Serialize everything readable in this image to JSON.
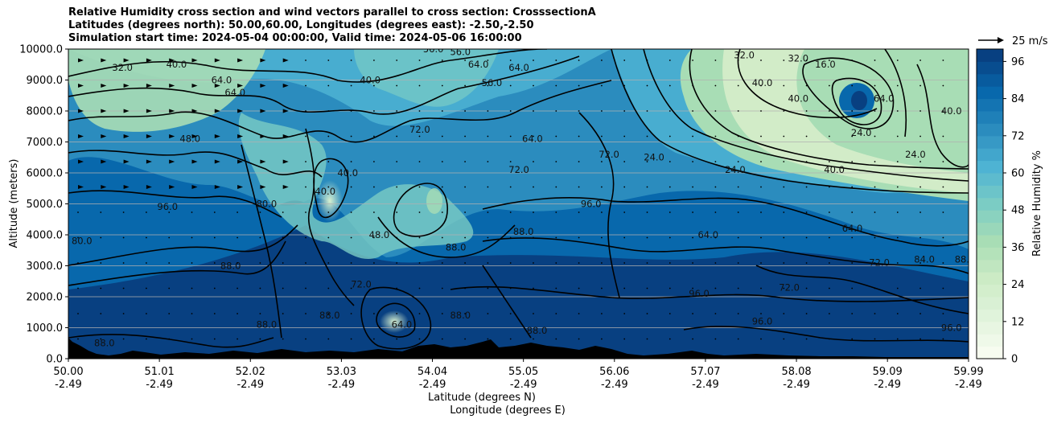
{
  "chart_data": {
    "type": "heatmap",
    "title": [
      "Relative Humidity cross section and wind vectors parallel to cross section: CrosssectionA",
      "Latitudes (degrees north): 50.00,60.00, Longitudes (degrees east): -2.50,-2.50",
      "Simulation start time: 2024-05-04 00:00:00, Valid time: 2024-05-06 16:00:00"
    ],
    "ylabel": "Altitude (meters)",
    "xlabel_lat": "Latitude (degrees N)",
    "xlabel_lon": "Longitude (degrees E)",
    "ylim": [
      0,
      10000
    ],
    "xlim": [
      50.0,
      59.99
    ],
    "y_ticks": [
      "0.0",
      "1000.0",
      "2000.0",
      "3000.0",
      "4000.0",
      "5000.0",
      "6000.0",
      "7000.0",
      "8000.0",
      "9000.0",
      "10000.0"
    ],
    "y_tick_values": [
      0,
      1000,
      2000,
      3000,
      4000,
      5000,
      6000,
      7000,
      8000,
      9000,
      10000
    ],
    "x_tick_values": [
      50.0,
      51.01,
      52.02,
      53.03,
      54.04,
      55.05,
      56.06,
      57.07,
      58.08,
      59.09,
      59.99
    ],
    "x_ticks_lat": [
      "50.00",
      "51.01",
      "52.02",
      "53.03",
      "54.04",
      "55.05",
      "56.06",
      "57.07",
      "58.08",
      "59.09",
      "59.99"
    ],
    "x_ticks_lon": [
      "-2.49",
      "-2.49",
      "-2.49",
      "-2.49",
      "-2.49",
      "-2.49",
      "-2.49",
      "-2.49",
      "-2.49",
      "-2.49",
      "-2.49"
    ],
    "colorbar": {
      "label": "Relative Humidity %",
      "range": [
        0,
        100
      ],
      "ticks": [
        "0",
        "12",
        "24",
        "36",
        "48",
        "60",
        "72",
        "84",
        "96"
      ],
      "tick_values": [
        0,
        12,
        24,
        36,
        48,
        60,
        72,
        84,
        96
      ],
      "colors": [
        "#f7fcf0",
        "#e0f3db",
        "#ccebc5",
        "#a8ddb5",
        "#7bccc4",
        "#4eb3d3",
        "#2b8cbe",
        "#0868ac",
        "#084081"
      ]
    },
    "quiver_key": "25 m/s",
    "grid": "horizontal",
    "contour_labels": [
      {
        "text": "32.0",
        "x": 50.6,
        "y": 9300
      },
      {
        "text": "40.0",
        "x": 51.2,
        "y": 9400
      },
      {
        "text": "64.0",
        "x": 51.7,
        "y": 8900
      },
      {
        "text": "64.0",
        "x": 51.85,
        "y": 8500
      },
      {
        "text": "48.0",
        "x": 51.35,
        "y": 7000
      },
      {
        "text": "56.0",
        "x": 54.05,
        "y": 9900
      },
      {
        "text": "56.0",
        "x": 54.35,
        "y": 9800
      },
      {
        "text": "64.0",
        "x": 54.55,
        "y": 9400
      },
      {
        "text": "64.0",
        "x": 55.0,
        "y": 9300
      },
      {
        "text": "56.0",
        "x": 54.7,
        "y": 8800
      },
      {
        "text": "40.0",
        "x": 53.35,
        "y": 8900
      },
      {
        "text": "72.0",
        "x": 53.9,
        "y": 7300
      },
      {
        "text": "72.0",
        "x": 55.0,
        "y": 6000
      },
      {
        "text": "64.0",
        "x": 55.15,
        "y": 7000
      },
      {
        "text": "40.0",
        "x": 53.1,
        "y": 5900
      },
      {
        "text": "40.0",
        "x": 52.85,
        "y": 5300
      },
      {
        "text": "48.0",
        "x": 53.45,
        "y": 3900
      },
      {
        "text": "72.0",
        "x": 53.25,
        "y": 2300
      },
      {
        "text": "88.0",
        "x": 52.2,
        "y": 1000
      },
      {
        "text": "88.0",
        "x": 52.9,
        "y": 1300
      },
      {
        "text": "64.0",
        "x": 53.7,
        "y": 1000
      },
      {
        "text": "88.0",
        "x": 54.35,
        "y": 1300
      },
      {
        "text": "88.0",
        "x": 54.3,
        "y": 3500
      },
      {
        "text": "88.0",
        "x": 55.05,
        "y": 4000
      },
      {
        "text": "88.0",
        "x": 55.2,
        "y": 800
      },
      {
        "text": "80.0",
        "x": 52.2,
        "y": 4900
      },
      {
        "text": "72.0",
        "x": 56.0,
        "y": 6500
      },
      {
        "text": "24.0",
        "x": 56.5,
        "y": 6400
      },
      {
        "text": "24.0",
        "x": 57.4,
        "y": 6000
      },
      {
        "text": "24.0",
        "x": 58.8,
        "y": 7200
      },
      {
        "text": "24.0",
        "x": 59.4,
        "y": 6500
      },
      {
        "text": "40.0",
        "x": 57.7,
        "y": 8800
      },
      {
        "text": "40.0",
        "x": 58.1,
        "y": 8300
      },
      {
        "text": "40.0",
        "x": 58.5,
        "y": 6000
      },
      {
        "text": "32.0",
        "x": 57.5,
        "y": 9700
      },
      {
        "text": "32.0",
        "x": 58.1,
        "y": 9600
      },
      {
        "text": "16.0",
        "x": 58.4,
        "y": 9400
      },
      {
        "text": "64.0",
        "x": 59.05,
        "y": 8300
      },
      {
        "text": "40.0",
        "x": 59.8,
        "y": 7900
      },
      {
        "text": "96.0",
        "x": 57.0,
        "y": 2000
      },
      {
        "text": "64.0",
        "x": 57.1,
        "y": 3900
      },
      {
        "text": "64.0",
        "x": 58.7,
        "y": 4100
      },
      {
        "text": "72.0",
        "x": 59.0,
        "y": 3000
      },
      {
        "text": "84.0",
        "x": 59.5,
        "y": 3100
      },
      {
        "text": "88.0",
        "x": 59.95,
        "y": 3100
      },
      {
        "text": "72.0",
        "x": 58.0,
        "y": 2200
      },
      {
        "text": "96.0",
        "x": 57.7,
        "y": 1100
      },
      {
        "text": "96.0",
        "x": 59.8,
        "y": 900
      },
      {
        "text": "96.0",
        "x": 55.8,
        "y": 4900
      },
      {
        "text": "88.0",
        "x": 50.4,
        "y": 400
      },
      {
        "text": "80.0",
        "x": 50.15,
        "y": 3700
      },
      {
        "text": "96.0",
        "x": 51.1,
        "y": 4800
      },
      {
        "text": "88.0",
        "x": 51.8,
        "y": 2900
      }
    ]
  }
}
